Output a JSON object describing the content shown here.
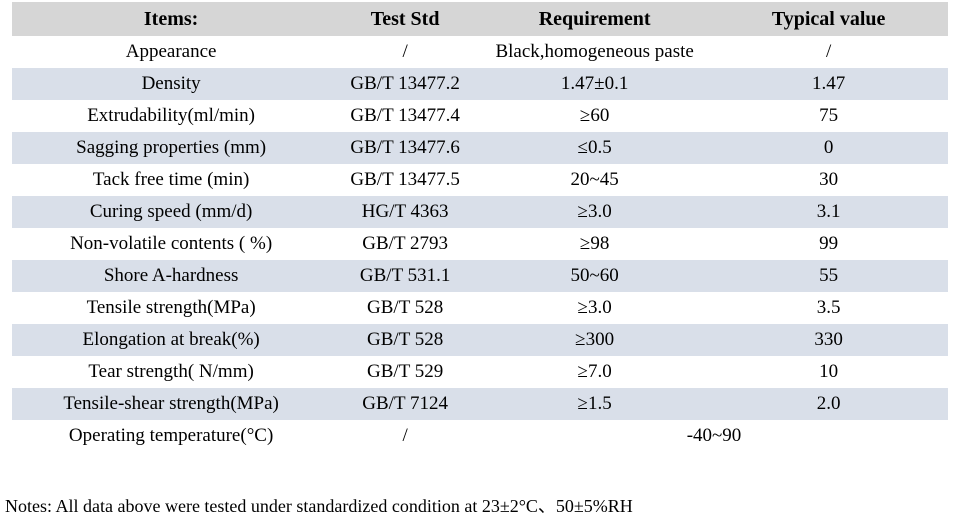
{
  "table": {
    "headers": [
      "Items:",
      "Test Std",
      "Requirement",
      "Typical value"
    ],
    "rows": [
      {
        "item": "Appearance",
        "std": "/",
        "req": "Black,homogeneous paste",
        "val": "/"
      },
      {
        "item": "Density",
        "std": "GB/T 13477.2",
        "req": "1.47±0.1",
        "val": "1.47"
      },
      {
        "item": "Extrudability(ml/min)",
        "std": "GB/T 13477.4",
        "req": "≥60",
        "val": "75"
      },
      {
        "item": "Sagging properties (mm)",
        "std": "GB/T 13477.6",
        "req": "≤0.5",
        "val": "0"
      },
      {
        "item": "Tack free time (min)",
        "std": "GB/T 13477.5",
        "req": "20~45",
        "val": "30"
      },
      {
        "item": "Curing speed (mm/d)",
        "std": "HG/T 4363",
        "req": "≥3.0",
        "val": "3.1"
      },
      {
        "item": "Non-volatile contents ( %)",
        "std": "GB/T 2793",
        "req": "≥98",
        "val": "99"
      },
      {
        "item": "Shore A-hardness",
        "std": "GB/T 531.1",
        "req": "50~60",
        "val": "55"
      },
      {
        "item": "Tensile strength(MPa)",
        "std": "GB/T 528",
        "req": "≥3.0",
        "val": "3.5"
      },
      {
        "item": "Elongation at break(%)",
        "std": "GB/T 528",
        "req": "≥300",
        "val": "330"
      },
      {
        "item": "Tear strength( N/mm)",
        "std": "GB/T 529",
        "req": "≥7.0",
        "val": "10"
      },
      {
        "item": "Tensile-shear strength(MPa)",
        "std": "GB/T 7124",
        "req": "≥1.5",
        "val": "2.0"
      },
      {
        "item": "Operating temperature(°C)",
        "std": "/",
        "req": "-40~90",
        "val": ""
      }
    ]
  },
  "notes": "Notes: All data above were tested under standardized condition at 23±2°C、50±5%RH",
  "colors": {
    "header_bg": "#d6d6d6",
    "stripe_bg": "#d9dfe9",
    "text": "#000000"
  }
}
